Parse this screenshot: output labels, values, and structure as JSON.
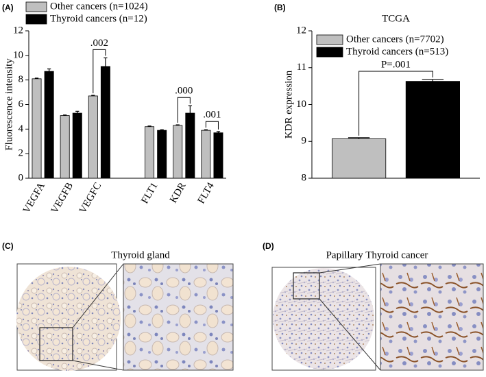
{
  "chart_data": [
    {
      "panel": "(A)",
      "type": "bar",
      "ylabel": "Fluorescence intensity",
      "categories": [
        "VEGFA",
        "VEGFB",
        "VEGFC",
        null,
        "FLT1",
        "KDR",
        "FLT4"
      ],
      "series": [
        {
          "name": "Other cancers (n=1024)",
          "color": "#bfbfbf",
          "values": [
            8.1,
            5.1,
            6.7,
            null,
            4.2,
            4.3,
            3.9
          ],
          "errors": [
            0.05,
            0.05,
            0.05,
            null,
            0.05,
            0.05,
            0.05
          ]
        },
        {
          "name": "Thyroid cancers (n=12)",
          "color": "#000000",
          "values": [
            8.7,
            5.3,
            9.1,
            null,
            3.9,
            5.3,
            3.7
          ],
          "errors": [
            0.2,
            0.15,
            0.7,
            null,
            0.05,
            0.6,
            0.1
          ]
        }
      ],
      "annotations": [
        null,
        null,
        ".002",
        null,
        null,
        ".000",
        ".001"
      ],
      "ylim": [
        0,
        12
      ],
      "yticks": [
        0,
        2,
        4,
        6,
        8,
        10,
        12
      ],
      "legend": "above"
    },
    {
      "panel": "(B)",
      "type": "bar",
      "title": "TCGA",
      "ylabel": "KDR expression",
      "categories": [
        null
      ],
      "series": [
        {
          "name": "Other cancers (n=7702)",
          "color": "#bfbfbf",
          "values": [
            9.07
          ],
          "errors": [
            0.03
          ]
        },
        {
          "name": "Thyroid cancers (n=513)",
          "color": "#000000",
          "values": [
            10.63
          ],
          "errors": [
            0.05
          ]
        }
      ],
      "annotations": [
        "P=.001"
      ],
      "ylim": [
        8,
        12
      ],
      "yticks": [
        8,
        9,
        10,
        11,
        12
      ],
      "legend": "top-left"
    }
  ],
  "images": [
    {
      "panel": "(C)",
      "title": "Thyroid gland"
    },
    {
      "panel": "(D)",
      "title": "Papillary Thyroid cancer"
    }
  ]
}
